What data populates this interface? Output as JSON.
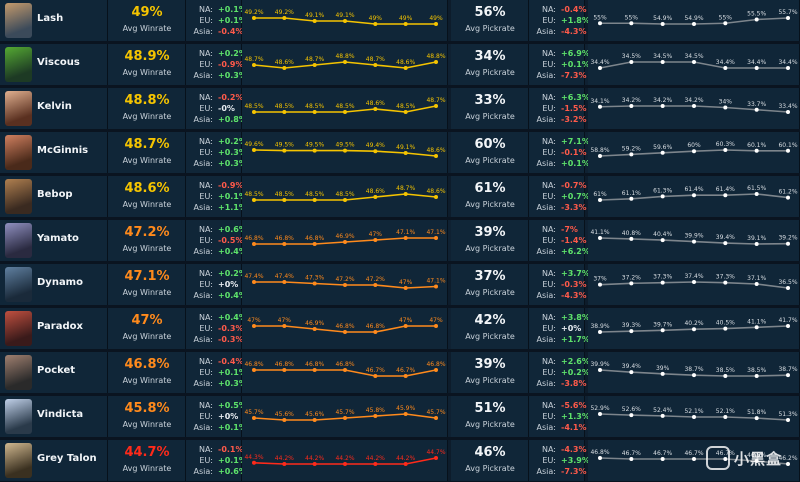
{
  "region_labels": [
    "NA:",
    "EU:",
    "Asia:"
  ],
  "winrate_label": "Avg Winrate",
  "pickrate_label": "Avg Pickrate",
  "colors": {
    "yellow": "#f5c400",
    "orange": "#ff8a1c",
    "red": "#ff2a1a",
    "gray": "#7d858c",
    "white": "#ffffff",
    "pos": "#5ee36b",
    "neg": "#ff5a4a"
  },
  "watermark": "小黑盒",
  "chart_data": {
    "type": "table",
    "heroes": [
      {
        "name": "Lash",
        "winrate": "49%",
        "wr_color": "yellow",
        "wr_regions": [
          "+0.1%",
          "+0.1%",
          "-0.4%"
        ],
        "wr_trend": [
          49.2,
          49.2,
          49.1,
          49.1,
          49,
          49,
          49
        ],
        "wr_trend_labels": [
          "49.2%",
          "49.2%",
          "49.1%",
          "49.1%",
          "49%",
          "49%",
          "49%"
        ],
        "pickrate": "56%",
        "pr_regions": [
          "-0.4%",
          "+1.8%",
          "-4.3%"
        ],
        "pr_trend": [
          55,
          55,
          54.9,
          54.9,
          55,
          55.5,
          55.7
        ],
        "pr_trend_labels": [
          "55%",
          "55%",
          "54.9%",
          "54.9%",
          "55%",
          "55.5%",
          "55.7%"
        ]
      },
      {
        "name": "Viscous",
        "winrate": "48.9%",
        "wr_color": "yellow",
        "wr_regions": [
          "+0.2%",
          "-0.9%",
          "+0.3%"
        ],
        "wr_trend": [
          48.7,
          48.6,
          48.7,
          48.8,
          48.7,
          48.6,
          48.8
        ],
        "wr_trend_labels": [
          "48.7%",
          "48.6%",
          "48.7%",
          "48.8%",
          "48.7%",
          "48.6%",
          "48.8%"
        ],
        "pickrate": "34%",
        "pr_regions": [
          "+6.9%",
          "+0.1%",
          "-7.3%"
        ],
        "pr_trend": [
          34.4,
          34.5,
          34.5,
          34.5,
          34.4,
          34.4,
          34.4
        ],
        "pr_trend_labels": [
          "34.4%",
          "34.5%",
          "34.5%",
          "34.5%",
          "34.4%",
          "34.4%",
          "34.4%"
        ]
      },
      {
        "name": "Kelvin",
        "winrate": "48.8%",
        "wr_color": "yellow",
        "wr_regions": [
          "-0.2%",
          "-0%",
          "+0.8%"
        ],
        "wr_trend": [
          48.5,
          48.5,
          48.5,
          48.5,
          48.6,
          48.5,
          48.7
        ],
        "wr_trend_labels": [
          "48.5%",
          "48.5%",
          "48.5%",
          "48.5%",
          "48.6%",
          "48.5%",
          "48.7%"
        ],
        "pickrate": "33%",
        "pr_regions": [
          "+6.3%",
          "-1.5%",
          "-3.2%"
        ],
        "pr_trend": [
          34.1,
          34.2,
          34.2,
          34.2,
          34,
          33.7,
          33.4
        ],
        "pr_trend_labels": [
          "34.1%",
          "34.2%",
          "34.2%",
          "34.2%",
          "34%",
          "33.7%",
          "33.4%"
        ]
      },
      {
        "name": "McGinnis",
        "winrate": "48.7%",
        "wr_color": "yellow",
        "wr_regions": [
          "+0.2%",
          "+0.3%",
          "+0.3%"
        ],
        "wr_trend": [
          49.6,
          49.5,
          49.5,
          49.5,
          49.4,
          49.1,
          48.6
        ],
        "wr_trend_labels": [
          "49.6%",
          "49.5%",
          "49.5%",
          "49.5%",
          "49.4%",
          "49.1%",
          "48.6%"
        ],
        "pickrate": "60%",
        "pr_regions": [
          "+7.1%",
          "-0.1%",
          "+0.1%"
        ],
        "pr_trend": [
          58.8,
          59.2,
          59.6,
          60,
          60.3,
          60.1,
          60.1
        ],
        "pr_trend_labels": [
          "58.8%",
          "59.2%",
          "59.6%",
          "60%",
          "60.3%",
          "60.1%",
          "60.1%"
        ]
      },
      {
        "name": "Bebop",
        "winrate": "48.6%",
        "wr_color": "yellow",
        "wr_regions": [
          "-0.9%",
          "+0.1%",
          "+1.1%"
        ],
        "wr_trend": [
          48.5,
          48.5,
          48.5,
          48.5,
          48.6,
          48.7,
          48.6
        ],
        "wr_trend_labels": [
          "48.5%",
          "48.5%",
          "48.5%",
          "48.5%",
          "48.6%",
          "48.7%",
          "48.6%"
        ],
        "pickrate": "61%",
        "pr_regions": [
          "-0.7%",
          "+0.7%",
          "-3.3%"
        ],
        "pr_trend": [
          61,
          61.1,
          61.3,
          61.4,
          61.4,
          61.5,
          61.2
        ],
        "pr_trend_labels": [
          "61%",
          "61.1%",
          "61.3%",
          "61.4%",
          "61.4%",
          "61.5%",
          "61.2%"
        ]
      },
      {
        "name": "Yamato",
        "winrate": "47.2%",
        "wr_color": "orange",
        "wr_regions": [
          "+0.6%",
          "-0.5%",
          "+0.4%"
        ],
        "wr_trend": [
          46.8,
          46.8,
          46.8,
          46.9,
          47,
          47.1,
          47.1
        ],
        "wr_trend_labels": [
          "46.8%",
          "46.8%",
          "46.8%",
          "46.9%",
          "47%",
          "47.1%",
          "47.1%"
        ],
        "pickrate": "39%",
        "pr_regions": [
          "-7%",
          "-1.4%",
          "+6.2%"
        ],
        "pr_trend": [
          41.1,
          40.8,
          40.4,
          39.9,
          39.4,
          39.1,
          39.2
        ],
        "pr_trend_labels": [
          "41.1%",
          "40.8%",
          "40.4%",
          "39.9%",
          "39.4%",
          "39.1%",
          "39.2%"
        ]
      },
      {
        "name": "Dynamo",
        "winrate": "47.1%",
        "wr_color": "orange",
        "wr_regions": [
          "+0.2%",
          "+0%",
          "+0.4%"
        ],
        "wr_trend": [
          47.4,
          47.4,
          47.3,
          47.2,
          47.2,
          47,
          47.1
        ],
        "wr_trend_labels": [
          "47.4%",
          "47.4%",
          "47.3%",
          "47.2%",
          "47.2%",
          "47%",
          "47.1%"
        ],
        "pickrate": "37%",
        "pr_regions": [
          "+3.7%",
          "-0.3%",
          "-4.3%"
        ],
        "pr_trend": [
          37,
          37.2,
          37.3,
          37.4,
          37.3,
          37.1,
          36.5
        ],
        "pr_trend_labels": [
          "37%",
          "37.2%",
          "37.3%",
          "37.4%",
          "37.3%",
          "37.1%",
          "36.5%"
        ]
      },
      {
        "name": "Paradox",
        "winrate": "47%",
        "wr_color": "orange",
        "wr_regions": [
          "+0.4%",
          "-0.3%",
          "-0.3%"
        ],
        "wr_trend": [
          47,
          47,
          46.9,
          46.8,
          46.8,
          47,
          47
        ],
        "wr_trend_labels": [
          "47%",
          "47%",
          "46.9%",
          "46.8%",
          "46.8%",
          "47%",
          "47%"
        ],
        "pickrate": "42%",
        "pr_regions": [
          "+3.8%",
          "+0%",
          "+1.7%"
        ],
        "pr_trend": [
          38.9,
          39.3,
          39.7,
          40.2,
          40.5,
          41.1,
          41.7
        ],
        "pr_trend_labels": [
          "38.9%",
          "39.3%",
          "39.7%",
          "40.2%",
          "40.5%",
          "41.1%",
          "41.7%"
        ]
      },
      {
        "name": "Pocket",
        "winrate": "46.8%",
        "wr_color": "orange",
        "wr_regions": [
          "-0.4%",
          "+0.1%",
          "+0.3%"
        ],
        "wr_trend": [
          46.8,
          46.8,
          46.8,
          46.8,
          46.7,
          46.7,
          46.8
        ],
        "wr_trend_labels": [
          "46.8%",
          "46.8%",
          "46.8%",
          "46.8%",
          "46.7%",
          "46.7%",
          "46.8%"
        ],
        "pickrate": "39%",
        "pr_regions": [
          "+2.6%",
          "+0.2%",
          "-3.8%"
        ],
        "pr_trend": [
          39.9,
          39.4,
          39,
          38.7,
          38.5,
          38.5,
          38.7
        ],
        "pr_trend_labels": [
          "39.9%",
          "39.4%",
          "39%",
          "38.7%",
          "38.5%",
          "38.5%",
          "38.7%"
        ]
      },
      {
        "name": "Vindicta",
        "winrate": "45.8%",
        "wr_color": "orange",
        "wr_regions": [
          "+0.5%",
          "+0%",
          "+0.1%"
        ],
        "wr_trend": [
          45.7,
          45.6,
          45.6,
          45.7,
          45.8,
          45.9,
          45.7
        ],
        "wr_trend_labels": [
          "45.7%",
          "45.6%",
          "45.6%",
          "45.7%",
          "45.8%",
          "45.9%",
          "45.7%"
        ],
        "pickrate": "51%",
        "pr_regions": [
          "-5.6%",
          "+1.3%",
          "-4.1%"
        ],
        "pr_trend": [
          52.9,
          52.6,
          52.4,
          52.1,
          52.1,
          51.8,
          51.3
        ],
        "pr_trend_labels": [
          "52.9%",
          "52.6%",
          "52.4%",
          "52.1%",
          "52.1%",
          "51.8%",
          "51.3%"
        ]
      },
      {
        "name": "Grey Talon",
        "winrate": "44.7%",
        "wr_color": "red",
        "wr_regions": [
          "-0.1%",
          "+0.1%",
          "+0.6%"
        ],
        "wr_trend": [
          44.3,
          44.2,
          44.2,
          44.2,
          44.2,
          44.2,
          44.7
        ],
        "wr_trend_labels": [
          "44.3%",
          "44.2%",
          "44.2%",
          "44.2%",
          "44.2%",
          "44.2%",
          "44.7%"
        ],
        "pickrate": "46%",
        "pr_regions": [
          "-4.3%",
          "+3.9%",
          "-7.3%"
        ],
        "pr_trend": [
          46.8,
          46.7,
          46.7,
          46.7,
          46.7,
          46.5,
          46.2
        ],
        "pr_trend_labels": [
          "46.8%",
          "46.7%",
          "46.7%",
          "46.7%",
          "46.7%",
          "46.5%",
          "46.2%"
        ]
      }
    ]
  }
}
